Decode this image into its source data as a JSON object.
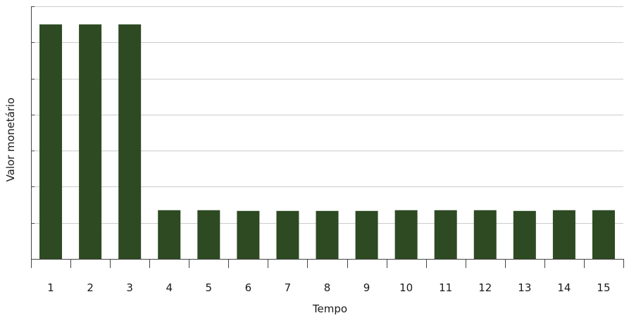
{
  "chart_data": {
    "type": "bar",
    "categories": [
      "1",
      "2",
      "3",
      "4",
      "5",
      "6",
      "7",
      "8",
      "9",
      "10",
      "11",
      "12",
      "13",
      "14",
      "15"
    ],
    "values": [
      6.5,
      6.5,
      6.5,
      1.35,
      1.35,
      1.33,
      1.33,
      1.33,
      1.33,
      1.35,
      1.35,
      1.35,
      1.33,
      1.35,
      1.35
    ],
    "title": "",
    "xlabel": "Tempo",
    "ylabel": "Valor monetário",
    "ylim": [
      0,
      7
    ],
    "y_tick_count": 7,
    "grid": true,
    "y_tick_labels_shown": false,
    "bar_color": "#2d4a22",
    "grid_color": "#cccccc",
    "axis_color": "#444444"
  }
}
